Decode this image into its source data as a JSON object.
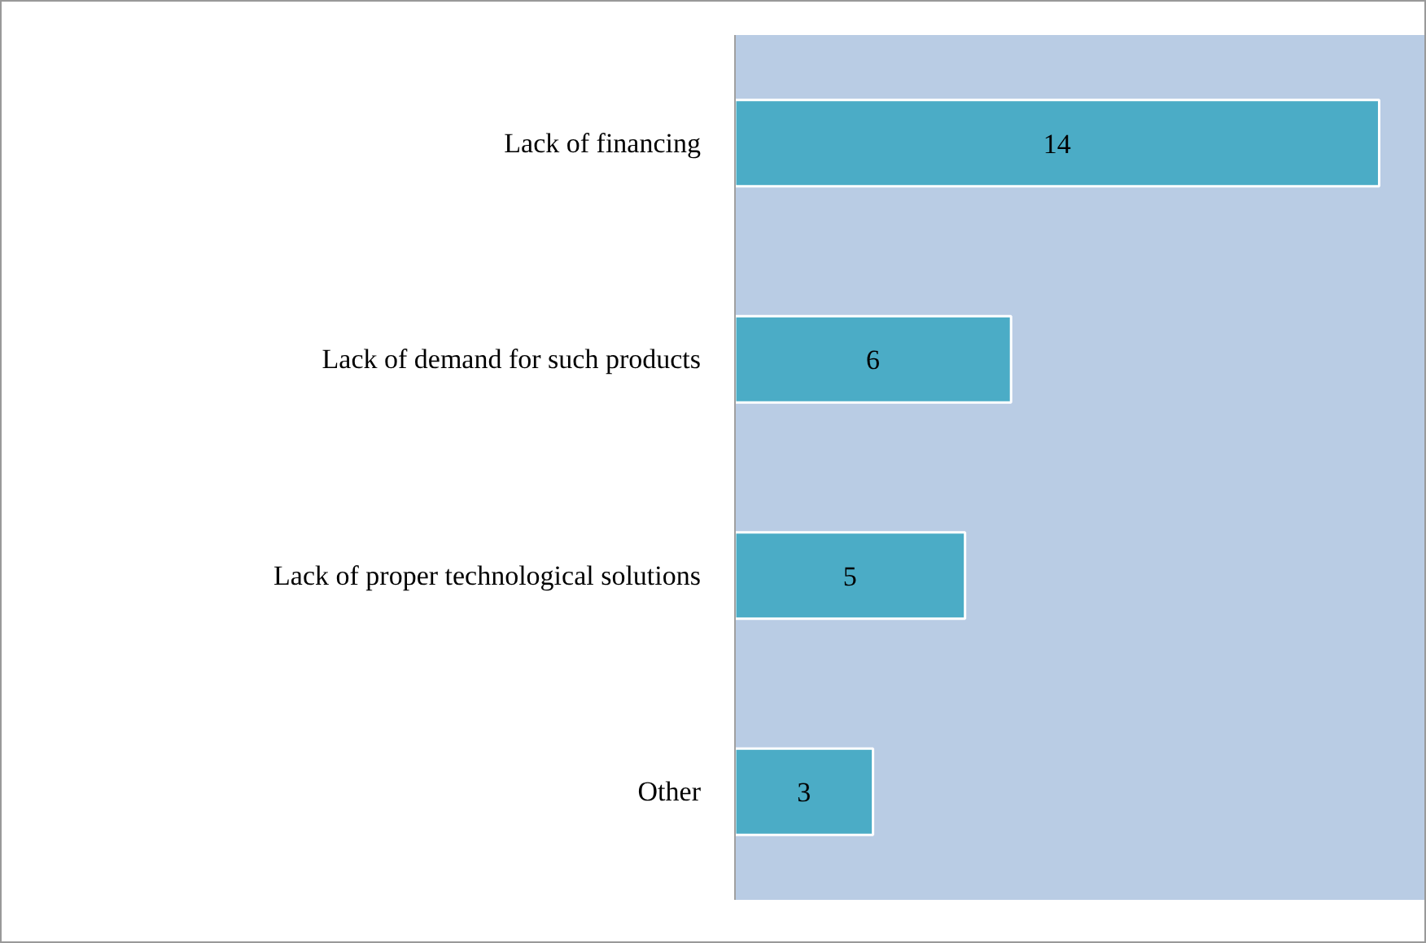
{
  "chart_data": {
    "type": "bar",
    "orientation": "horizontal",
    "categories": [
      "Lack of financing",
      "Lack of demand for such products",
      "Lack of proper technological solutions",
      "Other"
    ],
    "values": [
      14,
      6,
      5,
      3
    ],
    "color": "#4bacc6",
    "data_labels": true,
    "xlim": [
      0,
      15
    ],
    "grid": false
  }
}
